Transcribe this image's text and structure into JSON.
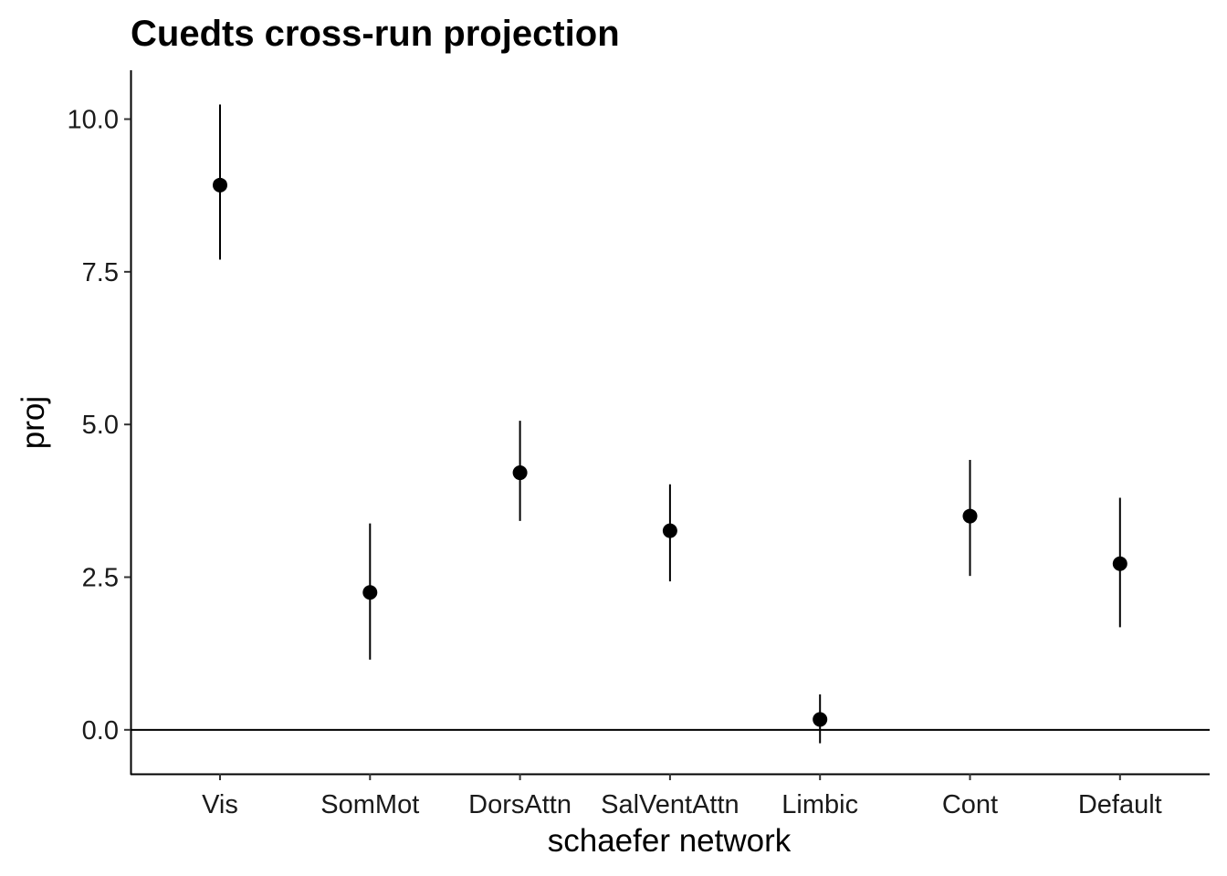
{
  "chart_data": {
    "type": "scatter",
    "title": "Cuedts cross-run projection",
    "xlabel": "schaefer network",
    "ylabel": "proj",
    "categories": [
      "Vis",
      "SomMot",
      "DorsAttn",
      "SalVentAttn",
      "Limbic",
      "Cont",
      "Default"
    ],
    "values": [
      8.92,
      2.25,
      4.21,
      3.26,
      0.17,
      3.5,
      2.72
    ],
    "error_low": [
      7.7,
      1.15,
      3.42,
      2.43,
      -0.22,
      2.52,
      1.68
    ],
    "error_high": [
      10.24,
      3.38,
      5.06,
      4.02,
      0.58,
      4.42,
      3.8
    ],
    "yticks": [
      "0.0",
      "2.5",
      "5.0",
      "7.5",
      "10.0"
    ],
    "ytick_values": [
      0,
      2.5,
      5,
      7.5,
      10
    ],
    "ylim": [
      -0.72,
      10.8
    ],
    "reference_line": 0,
    "grid": false,
    "legend": "none",
    "colors": {
      "point": "#000000",
      "axis": "#000000"
    }
  }
}
